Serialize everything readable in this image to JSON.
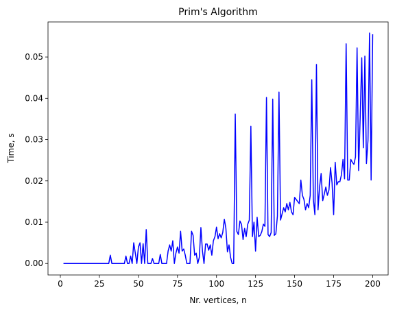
{
  "chart_data": {
    "type": "line",
    "title": "Prim's Algorithm",
    "x_label": "Nr. vertices, n",
    "y_label": "Time, s",
    "x": [
      2,
      3,
      4,
      5,
      6,
      7,
      8,
      9,
      10,
      11,
      12,
      13,
      14,
      15,
      16,
      17,
      18,
      19,
      20,
      21,
      22,
      23,
      24,
      25,
      26,
      27,
      28,
      29,
      30,
      31,
      32,
      33,
      34,
      35,
      36,
      37,
      38,
      39,
      40,
      41,
      42,
      43,
      44,
      45,
      46,
      47,
      48,
      49,
      50,
      51,
      52,
      53,
      54,
      55,
      56,
      57,
      58,
      59,
      60,
      61,
      62,
      63,
      64,
      65,
      66,
      67,
      68,
      69,
      70,
      71,
      72,
      73,
      74,
      75,
      76,
      77,
      78,
      79,
      80,
      81,
      82,
      83,
      84,
      85,
      86,
      87,
      88,
      89,
      90,
      91,
      92,
      93,
      94,
      95,
      96,
      97,
      98,
      99,
      100,
      101,
      102,
      103,
      104,
      105,
      106,
      107,
      108,
      109,
      110,
      111,
      112,
      113,
      114,
      115,
      116,
      117,
      118,
      119,
      120,
      121,
      122,
      123,
      124,
      125,
      126,
      127,
      128,
      129,
      130,
      131,
      132,
      133,
      134,
      135,
      136,
      137,
      138,
      139,
      140,
      141,
      142,
      143,
      144,
      145,
      146,
      147,
      148,
      149,
      150,
      151,
      152,
      153,
      154,
      155,
      156,
      157,
      158,
      159,
      160,
      161,
      162,
      163,
      164,
      165,
      166,
      167,
      168,
      169,
      170,
      171,
      172,
      173,
      174,
      175,
      176,
      177,
      178,
      179,
      180,
      181,
      182,
      183,
      184,
      185,
      186,
      187,
      188,
      189,
      190,
      191,
      192,
      193,
      194,
      195,
      196,
      197,
      198,
      199,
      200
    ],
    "series": [
      {
        "name": "Prim",
        "color": "#0000ff",
        "values": [
          0,
          0,
          0,
          0,
          0,
          0,
          0,
          0,
          0,
          0,
          0,
          0,
          0,
          0,
          0,
          0,
          0,
          0,
          0,
          0,
          0,
          0,
          0,
          0,
          0,
          0,
          0,
          0,
          0,
          0,
          0.002,
          0,
          0,
          0,
          0,
          0,
          0,
          0,
          0,
          0,
          0.0018,
          0,
          0,
          0.0018,
          0,
          0.005,
          0.0025,
          0,
          0.004,
          0.005,
          0,
          0.0048,
          0,
          0.0082,
          0,
          0,
          0,
          0.0012,
          0,
          0,
          0,
          0,
          0.0022,
          0,
          0,
          0,
          0,
          0.003,
          0.0045,
          0.003,
          0.0055,
          0,
          0.0025,
          0.004,
          0.0025,
          0.0078,
          0.003,
          0.0035,
          0.002,
          0,
          0,
          0,
          0.0078,
          0.0068,
          0.002,
          0.0025,
          0,
          0.0015,
          0.0087,
          0.003,
          0,
          0.0047,
          0.0047,
          0.0032,
          0.0045,
          0.002,
          0.0055,
          0.0065,
          0.0088,
          0.006,
          0.0072,
          0.0062,
          0.0075,
          0.0107,
          0.0085,
          0.0028,
          0.0045,
          0.0015,
          0,
          0,
          0.0362,
          0.0078,
          0.007,
          0.0103,
          0.0095,
          0.0058,
          0.0085,
          0.0065,
          0.0095,
          0.0105,
          0.0332,
          0.0065,
          0.01,
          0.003,
          0.0112,
          0.0065,
          0.0068,
          0.0077,
          0.0095,
          0.009,
          0.0402,
          0.007,
          0.0065,
          0.0075,
          0.0398,
          0.0068,
          0.0072,
          0.0115,
          0.0415,
          0.0105,
          0.012,
          0.0135,
          0.0125,
          0.0145,
          0.013,
          0.0148,
          0.0125,
          0.0118,
          0.016,
          0.0155,
          0.015,
          0.0145,
          0.0202,
          0.0165,
          0.0155,
          0.013,
          0.0145,
          0.0135,
          0.0165,
          0.0445,
          0.0155,
          0.0118,
          0.0482,
          0.013,
          0.0185,
          0.0218,
          0.0152,
          0.0168,
          0.0185,
          0.0165,
          0.0178,
          0.0232,
          0.0195,
          0.0118,
          0.0245,
          0.019,
          0.0198,
          0.0198,
          0.0215,
          0.0252,
          0.0205,
          0.0532,
          0.0202,
          0.0202,
          0.0252,
          0.0245,
          0.024,
          0.0258,
          0.0522,
          0.0225,
          0.0355,
          0.0498,
          0.028,
          0.0502,
          0.0242,
          0.0298,
          0.0558,
          0.0202,
          0.0555
        ]
      }
    ],
    "xlim": [
      -7.9,
      209.9
    ],
    "ylim": [
      -0.002785,
      0.058485
    ],
    "xticks": [
      0,
      25,
      50,
      75,
      100,
      125,
      150,
      175,
      200
    ],
    "yticks": [
      {
        "value": 0,
        "label": "0.00"
      },
      {
        "value": 0.01,
        "label": "0.01"
      },
      {
        "value": 0.02,
        "label": "0.02"
      },
      {
        "value": 0.03,
        "label": "0.03"
      },
      {
        "value": 0.04,
        "label": "0.04"
      },
      {
        "value": 0.05,
        "label": "0.05"
      }
    ]
  }
}
